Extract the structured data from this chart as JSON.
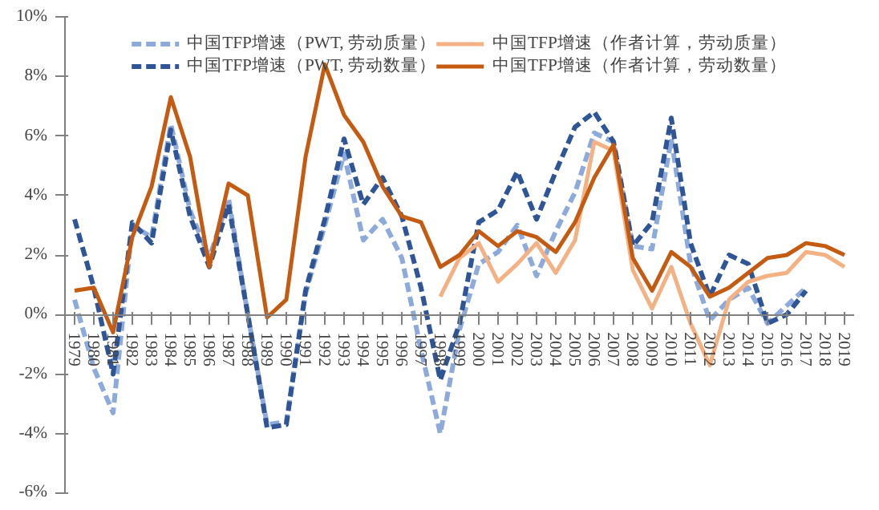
{
  "chart_data": {
    "type": "line",
    "categories": [
      "1979",
      "1980",
      "1981",
      "1982",
      "1983",
      "1984",
      "1985",
      "1986",
      "1987",
      "1988",
      "1989",
      "1990",
      "1991",
      "1992",
      "1993",
      "1994",
      "1995",
      "1996",
      "1997",
      "1998",
      "1999",
      "2000",
      "2001",
      "2002",
      "2003",
      "2004",
      "2005",
      "2006",
      "2007",
      "2008",
      "2009",
      "2010",
      "2011",
      "2012",
      "2013",
      "2014",
      "2015",
      "2016",
      "2017",
      "2018",
      "2019"
    ],
    "series": [
      {
        "name": "中国TFP增速（PWT, 劳动质量）",
        "color": "#8eaadb",
        "line_style": "dashed",
        "values": [
          0.5,
          -1.8,
          -3.3,
          3.0,
          2.6,
          6.4,
          3.5,
          1.9,
          3.9,
          0.0,
          -3.7,
          -3.6,
          0.7,
          3.0,
          5.4,
          2.5,
          3.2,
          1.9,
          -1.2,
          -4.0,
          -0.5,
          1.7,
          2.1,
          3.0,
          1.3,
          2.8,
          4.1,
          6.1,
          5.8,
          2.3,
          2.2,
          5.9,
          1.7,
          -0.2,
          0.5,
          0.9,
          -0.3,
          0.3,
          0.9,
          null,
          null
        ]
      },
      {
        "name": "中国TFP增速（PWT, 劳动数量）",
        "color": "#2f5597",
        "line_style": "dashed",
        "values": [
          3.2,
          0.9,
          -2.0,
          3.1,
          2.4,
          6.2,
          3.3,
          1.6,
          3.7,
          0.0,
          -3.8,
          -3.7,
          0.8,
          3.2,
          5.9,
          3.7,
          4.6,
          3.3,
          0.9,
          -2.2,
          -0.3,
          3.1,
          3.5,
          4.8,
          3.2,
          4.8,
          6.3,
          6.8,
          5.8,
          2.3,
          3.1,
          6.6,
          2.4,
          0.6,
          2.0,
          1.7,
          -0.3,
          0.0,
          0.8,
          null,
          null
        ]
      },
      {
        "name": "中国TFP增速（作者计算，劳动质量）",
        "color": "#f4b183",
        "line_style": "solid",
        "values": [
          null,
          null,
          null,
          null,
          null,
          null,
          null,
          null,
          null,
          null,
          null,
          null,
          null,
          null,
          null,
          null,
          null,
          null,
          null,
          0.6,
          1.9,
          2.4,
          1.1,
          1.7,
          2.4,
          1.4,
          2.5,
          5.8,
          5.5,
          1.5,
          0.2,
          1.6,
          -0.3,
          -1.7,
          0.5,
          1.1,
          1.3,
          1.4,
          2.1,
          2.0,
          1.6
        ]
      },
      {
        "name": "中国TFP增速（作者计算，劳动数量）",
        "color": "#c55a11",
        "line_style": "solid",
        "values": [
          0.8,
          0.9,
          -0.6,
          2.6,
          4.3,
          7.3,
          5.3,
          1.6,
          4.4,
          4.0,
          -0.1,
          0.5,
          5.3,
          8.4,
          6.7,
          5.8,
          4.3,
          3.3,
          3.1,
          1.6,
          2.0,
          2.8,
          2.3,
          2.8,
          2.6,
          2.1,
          3.1,
          4.6,
          5.7,
          1.9,
          0.8,
          2.1,
          1.6,
          0.6,
          0.9,
          1.4,
          1.9,
          2.0,
          2.4,
          2.3,
          2.0
        ]
      }
    ],
    "ylim": [
      -6,
      10
    ],
    "yticks": [
      {
        "value": -6,
        "label": "-6%"
      },
      {
        "value": -4,
        "label": "-4%"
      },
      {
        "value": -2,
        "label": "-2%"
      },
      {
        "value": 0,
        "label": "0%"
      },
      {
        "value": 2,
        "label": "2%"
      },
      {
        "value": 4,
        "label": "4%"
      },
      {
        "value": 6,
        "label": "6%"
      },
      {
        "value": 8,
        "label": "8%"
      },
      {
        "value": 10,
        "label": "10%"
      }
    ],
    "grid": false,
    "legend": "top"
  }
}
